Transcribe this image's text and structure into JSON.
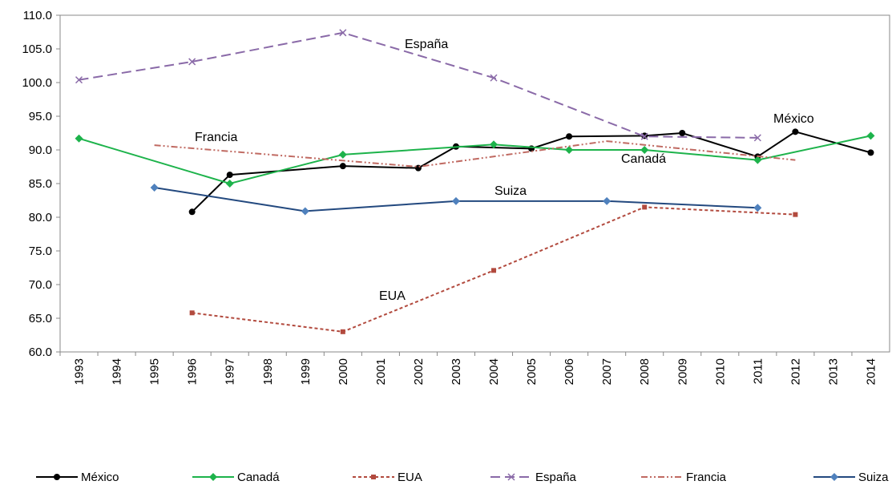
{
  "chart_data": {
    "type": "line",
    "xlim": [
      1992.5,
      2014.5
    ],
    "xticks": [
      1993,
      1994,
      1995,
      1996,
      1997,
      1998,
      1999,
      2000,
      2001,
      2002,
      2003,
      2004,
      2005,
      2006,
      2007,
      2008,
      2009,
      2010,
      2011,
      2012,
      2013,
      2014
    ],
    "ylim": [
      60,
      110
    ],
    "yticks": [
      {
        "value": 60,
        "label": "60.0"
      },
      {
        "value": 65,
        "label": "65.0"
      },
      {
        "value": 70,
        "label": "70.0"
      },
      {
        "value": 75,
        "label": "75.0"
      },
      {
        "value": 80,
        "label": "80.0"
      },
      {
        "value": 85,
        "label": "85.0"
      },
      {
        "value": 90,
        "label": "90.0"
      },
      {
        "value": 95,
        "label": "95.0"
      },
      {
        "value": 100,
        "label": "100.0"
      },
      {
        "value": 105,
        "label": "105.0"
      },
      {
        "value": 110,
        "label": "110.0"
      }
    ],
    "series": [
      {
        "name": "México",
        "color": "#000000",
        "marker": "circle",
        "dash": "solid",
        "x": [
          1996,
          1997,
          2000,
          2002,
          2003,
          2005,
          2006,
          2008,
          2009,
          2011,
          2012,
          2014
        ],
        "values": [
          80.8,
          86.3,
          87.6,
          87.3,
          90.5,
          90.2,
          92.0,
          92.1,
          92.5,
          89.0,
          92.7,
          89.6
        ]
      },
      {
        "name": "Canadá",
        "color": "#1db34b",
        "marker": "diamond",
        "dash": "solid",
        "x": [
          1993,
          1997,
          2000,
          2004,
          2006,
          2008,
          2011,
          2014
        ],
        "values": [
          91.7,
          85.0,
          89.3,
          90.8,
          90.0,
          90.0,
          88.5,
          92.1
        ]
      },
      {
        "name": "EUA",
        "color": "#b24a3e",
        "marker": "square",
        "dash": "dash",
        "x": [
          1996,
          2000,
          2004,
          2008,
          2012
        ],
        "values": [
          65.8,
          63.0,
          72.1,
          81.5,
          80.4
        ]
      },
      {
        "name": "España",
        "color": "#8a6aa8",
        "marker": "cross",
        "dash": "longdash",
        "x": [
          1993,
          1996,
          2000,
          2004,
          2008,
          2011
        ],
        "values": [
          100.4,
          103.1,
          107.4,
          100.7,
          92.0,
          91.8
        ]
      },
      {
        "name": "Francia",
        "color": "#c06a62",
        "marker": "none",
        "dash": "dashdotdot",
        "x": [
          1995,
          2002,
          2007,
          2012
        ],
        "values": [
          90.7,
          87.5,
          91.3,
          88.5
        ]
      },
      {
        "name": "Suiza",
        "color": "#23497f",
        "marker": "diamond",
        "dash": "solid",
        "x": [
          1995,
          1999,
          2003,
          2007,
          2011
        ],
        "values": [
          84.4,
          80.9,
          82.4,
          82.4,
          81.4
        ]
      }
    ],
    "annotations": [
      "España",
      "Francia",
      "México",
      "Canadá",
      "Suiza",
      "EUA"
    ]
  }
}
